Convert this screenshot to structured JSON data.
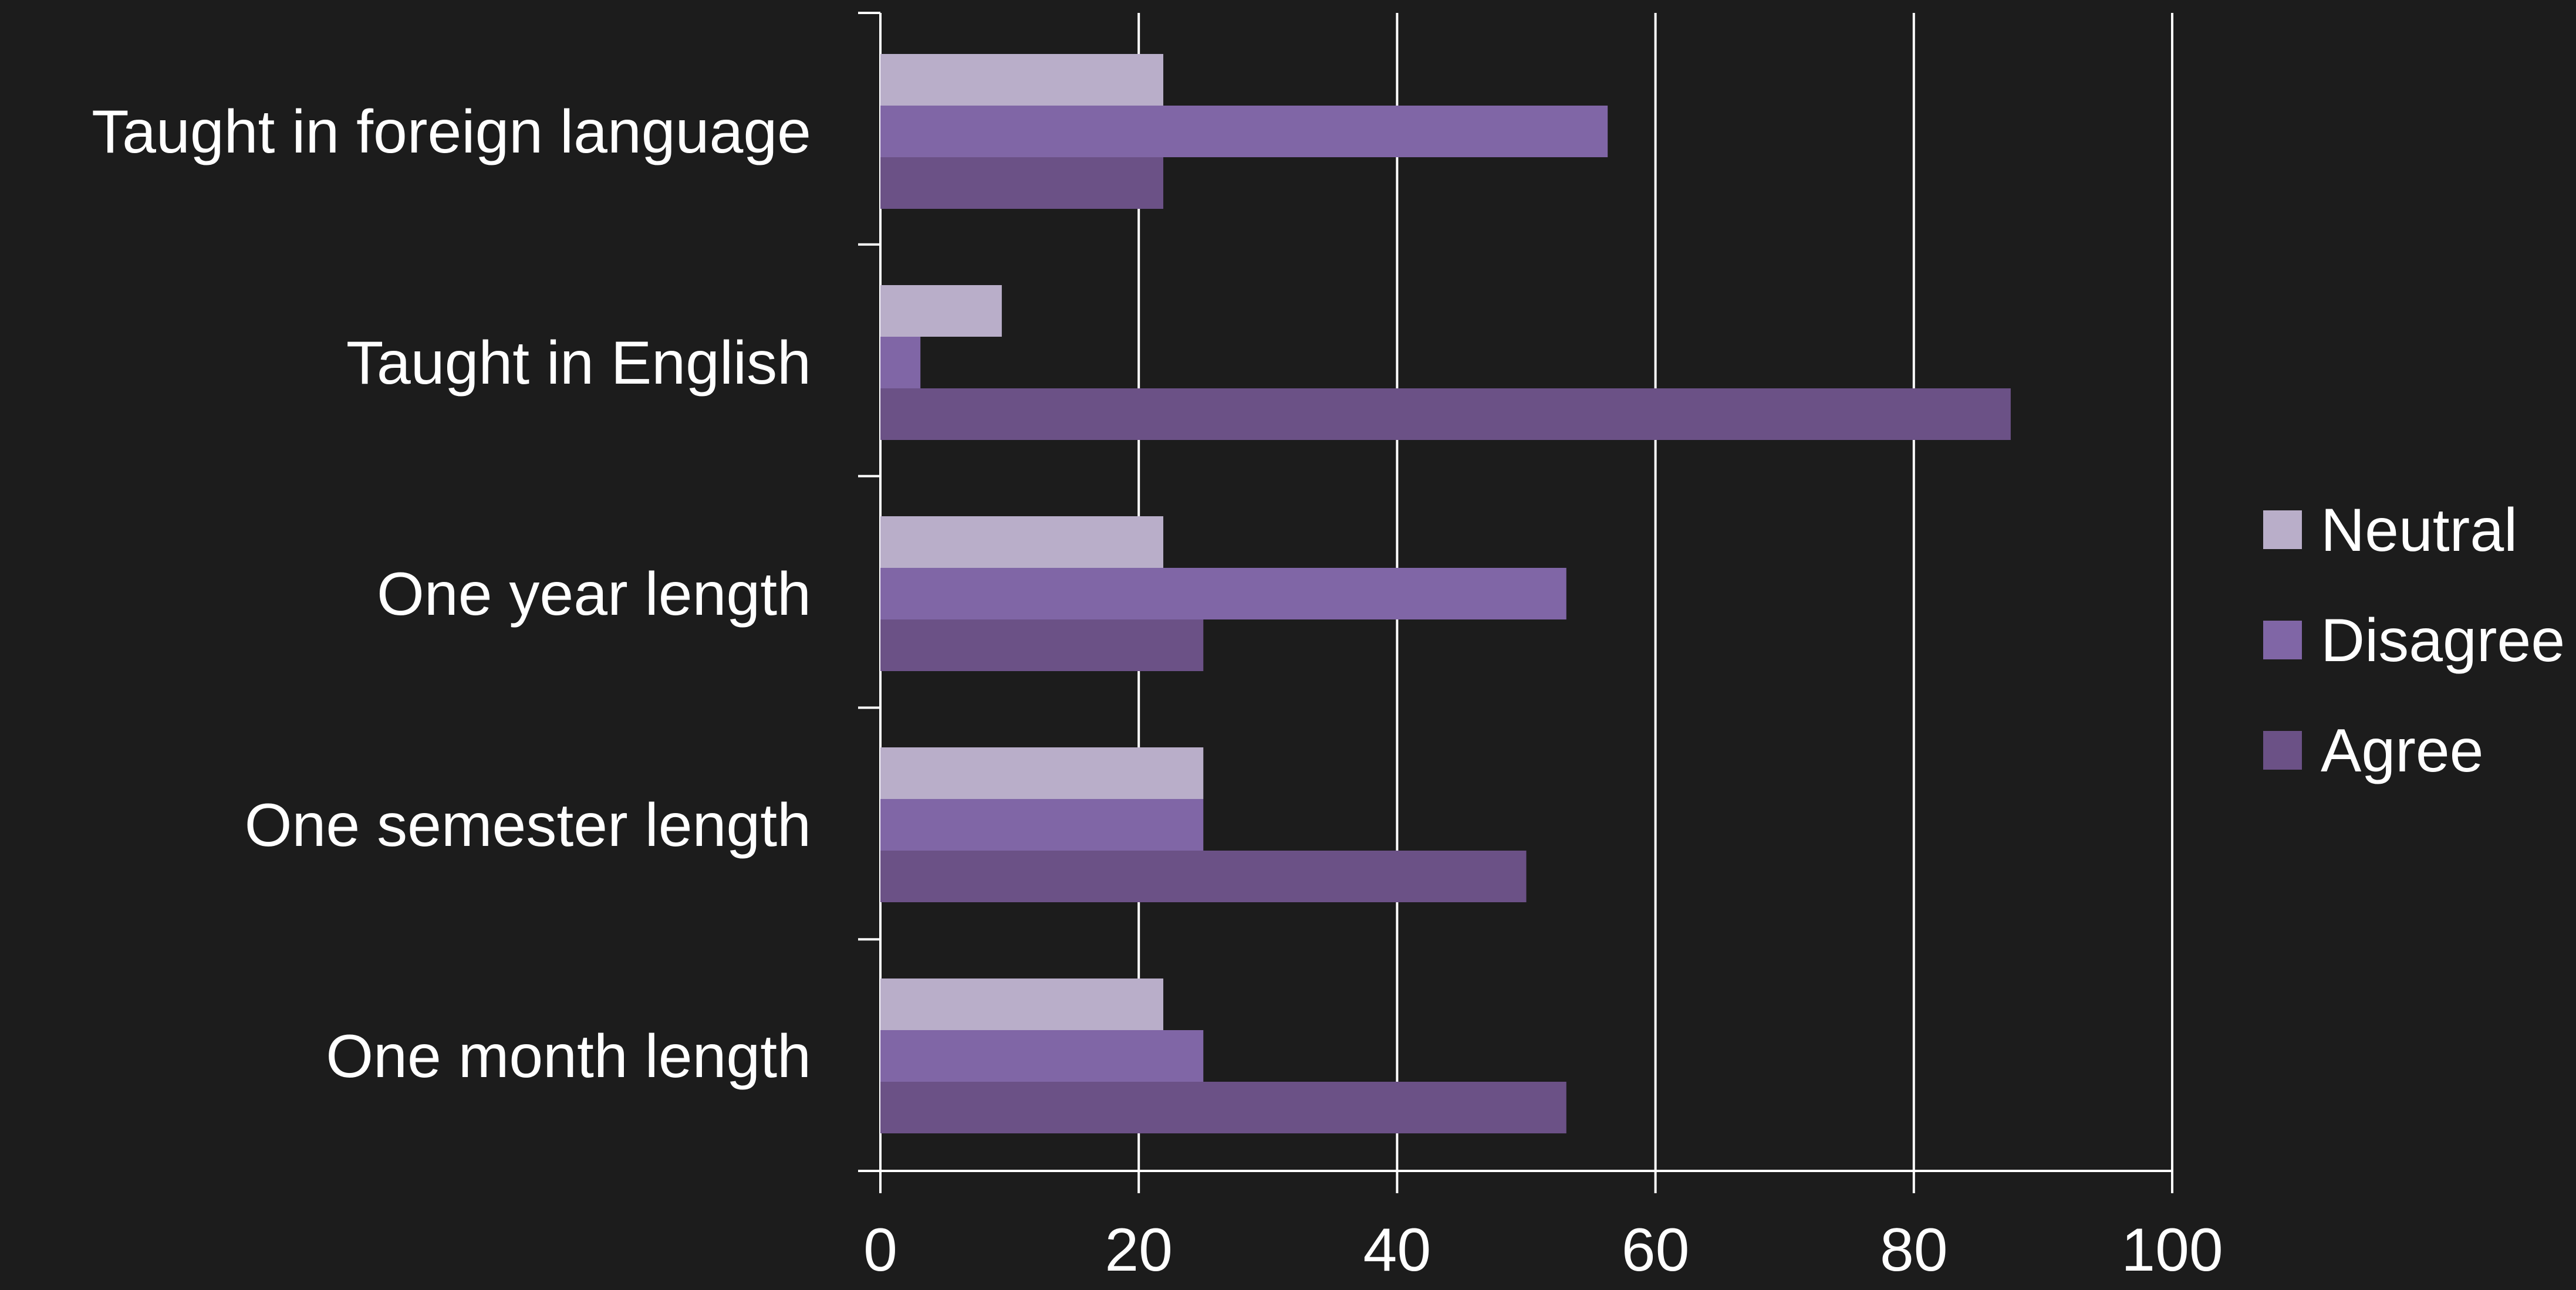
{
  "chart_data": {
    "type": "bar",
    "orientation": "horizontal",
    "categories": [
      "Taught in foreign language",
      "Taught in English",
      "One year length",
      "One semester length",
      "One month length"
    ],
    "series": [
      {
        "name": "Neutral",
        "color": "#b9aec9",
        "values": [
          21.9,
          9.4,
          21.9,
          25.0,
          21.9
        ]
      },
      {
        "name": "Disagree",
        "color": "#8066a6",
        "values": [
          56.3,
          3.1,
          53.1,
          25.0,
          25.0
        ]
      },
      {
        "name": "Agree",
        "color": "#6b5186",
        "values": [
          21.9,
          87.5,
          25.0,
          50.0,
          53.1
        ]
      }
    ],
    "xlim": [
      0,
      100
    ],
    "xticks": [
      "0",
      "20",
      "40",
      "60",
      "80",
      "100"
    ],
    "grid": true,
    "legend_position": "right",
    "legend_order": [
      "Neutral",
      "Disagree",
      "Agree"
    ]
  }
}
